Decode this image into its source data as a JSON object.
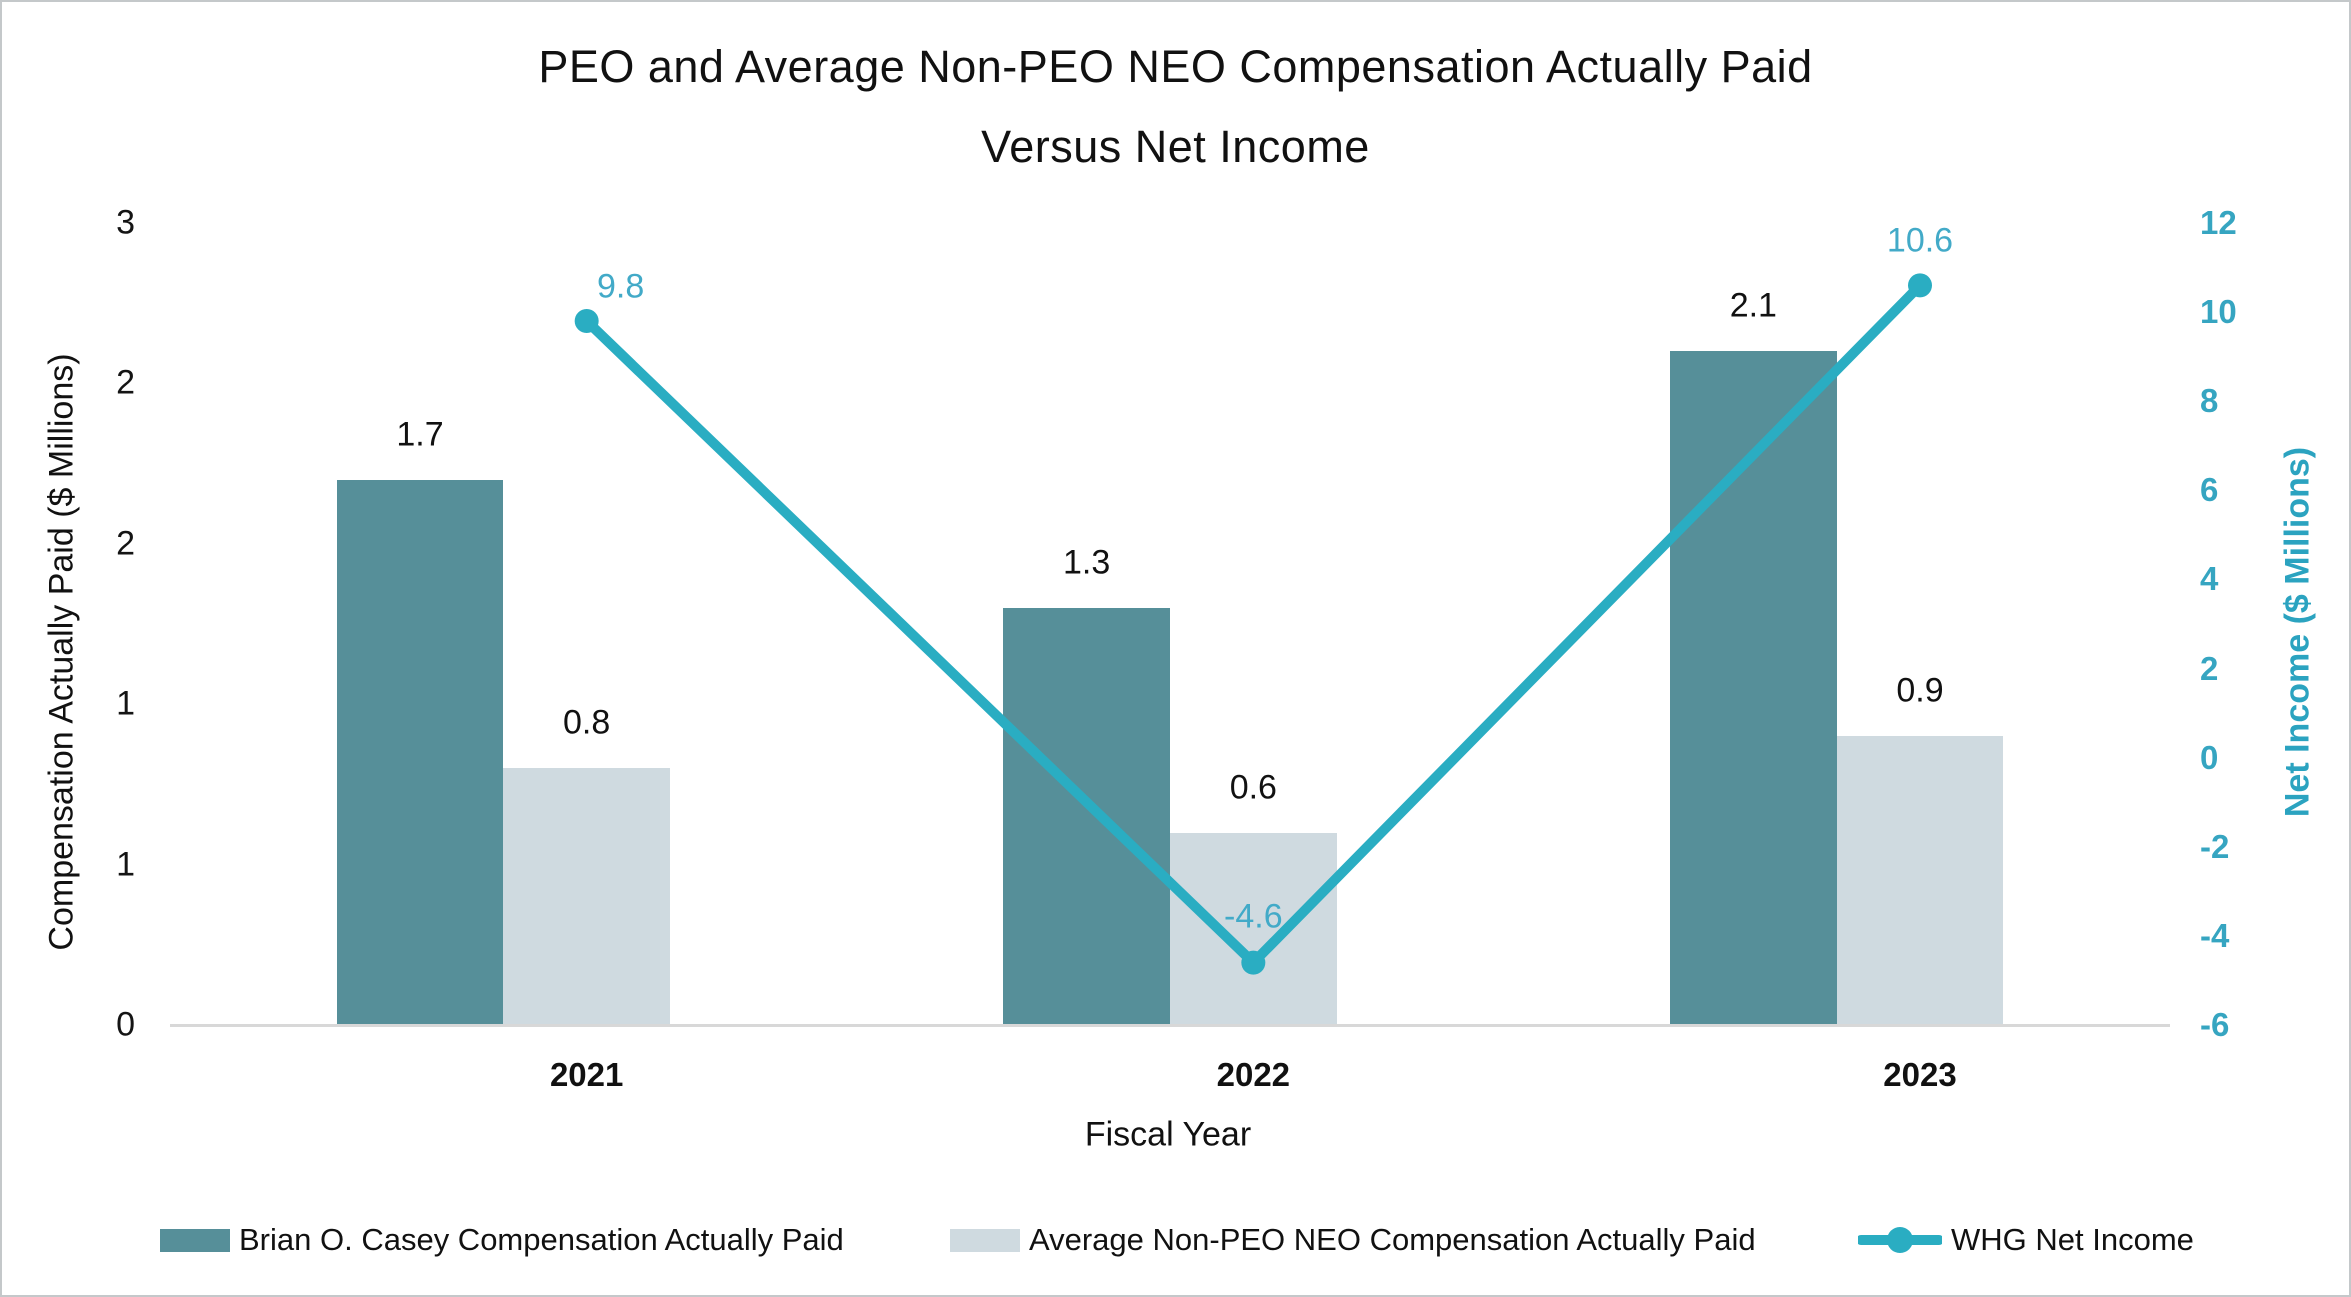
{
  "title": {
    "line1": "PEO and Average Non-PEO NEO Compensation Actually Paid",
    "line2": "Versus Net Income"
  },
  "chart_data": {
    "type": "bar+line",
    "title": "PEO and Average Non-PEO NEO Compensation Actually Paid Versus Net Income",
    "xlabel": "Fiscal Year",
    "ylabel_left": "Compensation Actually Paid ($ Millions)",
    "ylabel_right": "Net Income ($ Millions)",
    "categories": [
      "2021",
      "2022",
      "2023"
    ],
    "series": [
      {
        "name": "Brian O. Casey Compensation Actually Paid",
        "type": "bar",
        "axis": "left",
        "color": "#568f99",
        "values": [
          1.7,
          1.3,
          2.1
        ],
        "value_labels": [
          "1.7",
          "1.3",
          "2.1"
        ]
      },
      {
        "name": "Average Non-PEO NEO Compensation Actually Paid",
        "type": "bar",
        "axis": "left",
        "color": "#cfdae0",
        "values": [
          0.8,
          0.6,
          0.9
        ],
        "value_labels": [
          "0.8",
          "0.6",
          "0.9"
        ]
      },
      {
        "name": "WHG Net Income",
        "type": "line",
        "axis": "right",
        "color": "#2aadc2",
        "label_color": "#42aac8",
        "values": [
          9.8,
          -4.6,
          10.6
        ],
        "value_labels": [
          "9.8",
          "-4.6",
          "10.6"
        ]
      }
    ],
    "left_axis": {
      "min": 0,
      "max": 2.5,
      "tick_values": [
        0,
        0.5,
        1,
        1.5,
        2,
        2.5
      ],
      "tick_labels": [
        "0",
        "1",
        "1",
        "2",
        "2",
        "3"
      ],
      "text_color": "#141414"
    },
    "right_axis": {
      "min": -6,
      "max": 12,
      "tick_values": [
        -6,
        -4,
        -2,
        0,
        2,
        4,
        6,
        8,
        10,
        12
      ],
      "tick_labels": [
        "-6",
        "-4",
        "-2",
        "0",
        "2",
        "4",
        "6",
        "8",
        "10",
        "12"
      ],
      "text_color": "#36a5c1"
    },
    "grid": false,
    "legend_position": "bottom",
    "baseline_color": "#d8d8d8"
  },
  "legend": {
    "items": [
      {
        "label": "Brian O. Casey Compensation Actually Paid",
        "marker": "square",
        "color": "#568f99"
      },
      {
        "label": "Average Non-PEO NEO Compensation Actually Paid",
        "marker": "square",
        "color": "#cfdae0"
      },
      {
        "label": "WHG Net Income",
        "marker": "line-dot",
        "color": "#2aadc2"
      }
    ]
  }
}
